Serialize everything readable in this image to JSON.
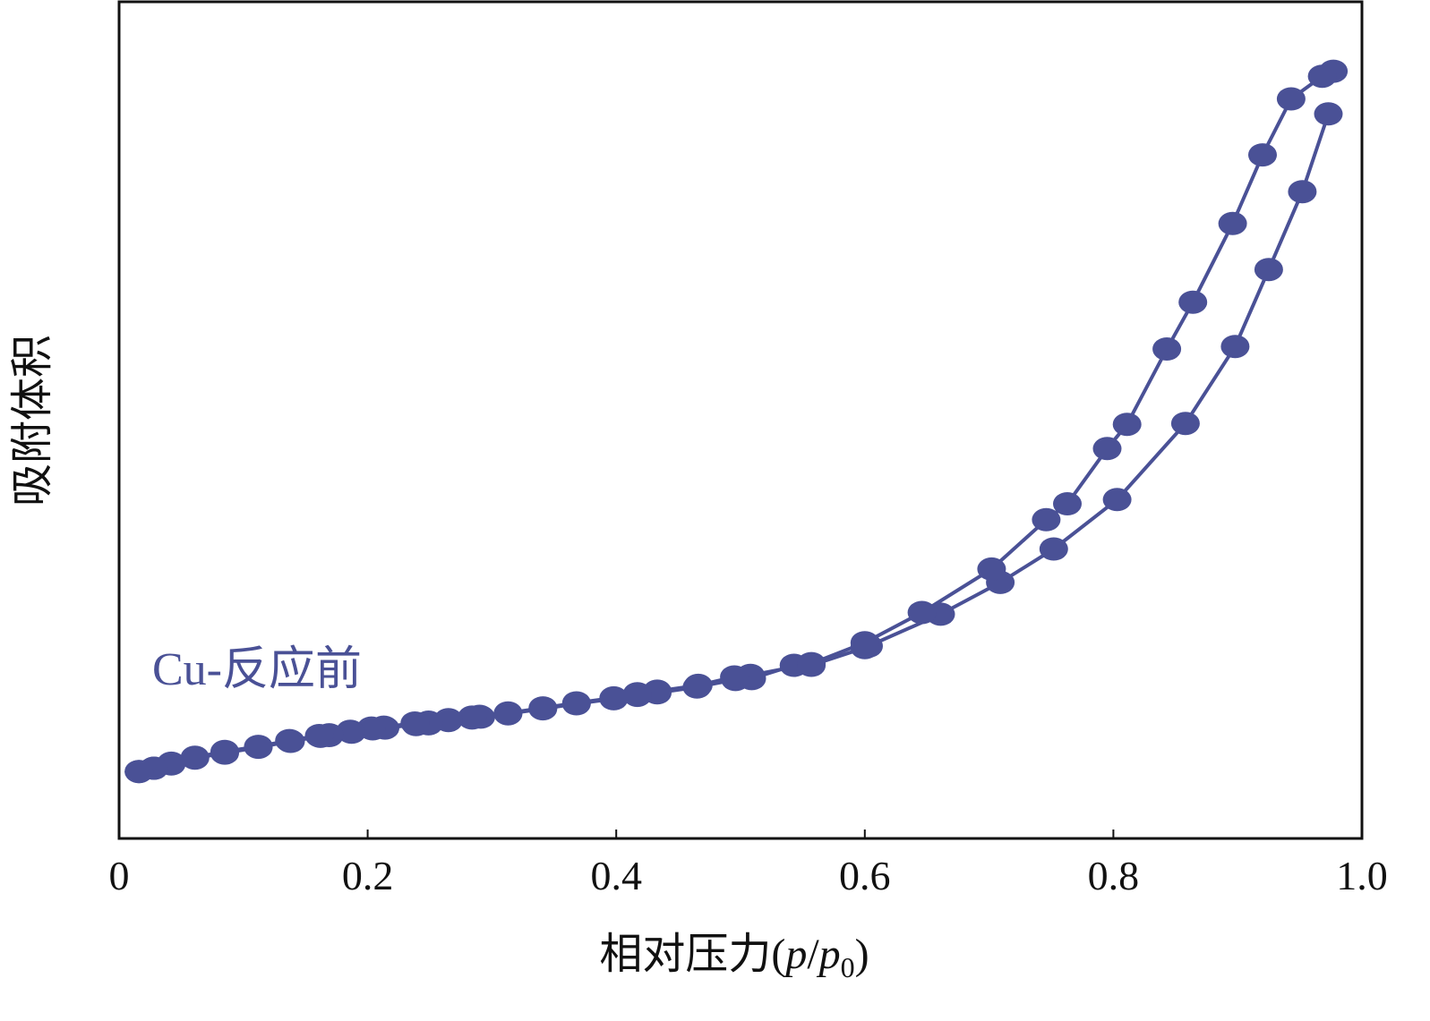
{
  "chart_data": {
    "type": "scatter",
    "title": "",
    "xlabel": "相对压力(p/p0)",
    "xlabel_parts": {
      "prefix": "相对压力(",
      "var1": "p",
      "slash": "/",
      "var2": "p",
      "subscript": "0",
      "suffix": ")"
    },
    "ylabel": "吸附体积",
    "xlim": [
      0,
      1.0
    ],
    "ylim": [
      0,
      1.0
    ],
    "x_ticks": [
      "0",
      "0.2",
      "0.4",
      "0.6",
      "0.8",
      "1.0"
    ],
    "x_tick_values": [
      0,
      0.2,
      0.4,
      0.6,
      0.8,
      1.0
    ],
    "y_ticks_shown": false,
    "grid": false,
    "legend": "none",
    "annotation": {
      "text": "Cu-反应前",
      "color": "#4a5196"
    },
    "colors": {
      "series": "#4a5196",
      "axis": "#111111"
    },
    "series": [
      {
        "values": [
          [
            0.016,
            0.08
          ],
          [
            0.028,
            0.084
          ],
          [
            0.042,
            0.089
          ],
          [
            0.061,
            0.096
          ],
          [
            0.085,
            0.102
          ],
          [
            0.112,
            0.109
          ],
          [
            0.138,
            0.116
          ],
          [
            0.162,
            0.122
          ],
          [
            0.169,
            0.123
          ],
          [
            0.187,
            0.127
          ],
          [
            0.204,
            0.131
          ],
          [
            0.214,
            0.132
          ],
          [
            0.239,
            0.136
          ],
          [
            0.249,
            0.137
          ],
          [
            0.265,
            0.141
          ],
          [
            0.284,
            0.144
          ],
          [
            0.291,
            0.145
          ],
          [
            0.313,
            0.149
          ],
          [
            0.341,
            0.155
          ],
          [
            0.368,
            0.161
          ],
          [
            0.398,
            0.167
          ],
          [
            0.417,
            0.171
          ],
          [
            0.433,
            0.174
          ],
          [
            0.465,
            0.181
          ],
          [
            0.496,
            0.19
          ],
          [
            0.509,
            0.191
          ],
          [
            0.543,
            0.207
          ],
          [
            0.557,
            0.207
          ],
          [
            0.6,
            0.228
          ],
          [
            0.603,
            0.23
          ],
          [
            0.661,
            0.268
          ],
          [
            0.709,
            0.306
          ],
          [
            0.752,
            0.346
          ],
          [
            0.803,
            0.405
          ],
          [
            0.858,
            0.496
          ],
          [
            0.898,
            0.588
          ],
          [
            0.925,
            0.68
          ],
          [
            0.952,
            0.773
          ],
          [
            0.973,
            0.866
          ]
        ]
      },
      {
        "values": [
          [
            0.977,
            0.917
          ],
          [
            0.968,
            0.911
          ],
          [
            0.943,
            0.884
          ],
          [
            0.92,
            0.817
          ],
          [
            0.896,
            0.735
          ],
          [
            0.864,
            0.641
          ],
          [
            0.843,
            0.585
          ],
          [
            0.811,
            0.495
          ],
          [
            0.795,
            0.466
          ],
          [
            0.763,
            0.4
          ],
          [
            0.746,
            0.381
          ],
          [
            0.702,
            0.322
          ],
          [
            0.646,
            0.27
          ],
          [
            0.6,
            0.234
          ],
          [
            0.557,
            0.209
          ],
          [
            0.508,
            0.195
          ],
          [
            0.495,
            0.193
          ],
          [
            0.466,
            0.183
          ],
          [
            0.433,
            0.176
          ],
          [
            0.417,
            0.173
          ],
          [
            0.398,
            0.168
          ],
          [
            0.368,
            0.162
          ],
          [
            0.341,
            0.156
          ],
          [
            0.313,
            0.15
          ],
          [
            0.29,
            0.146
          ],
          [
            0.284,
            0.145
          ],
          [
            0.265,
            0.142
          ],
          [
            0.249,
            0.139
          ],
          [
            0.238,
            0.138
          ],
          [
            0.213,
            0.133
          ],
          [
            0.203,
            0.132
          ],
          [
            0.186,
            0.128
          ],
          [
            0.169,
            0.124
          ],
          [
            0.161,
            0.123
          ],
          [
            0.137,
            0.117
          ],
          [
            0.112,
            0.11
          ],
          [
            0.085,
            0.104
          ],
          [
            0.061,
            0.097
          ],
          [
            0.042,
            0.09
          ],
          [
            0.028,
            0.084
          ],
          [
            0.016,
            0.08
          ]
        ]
      }
    ]
  }
}
